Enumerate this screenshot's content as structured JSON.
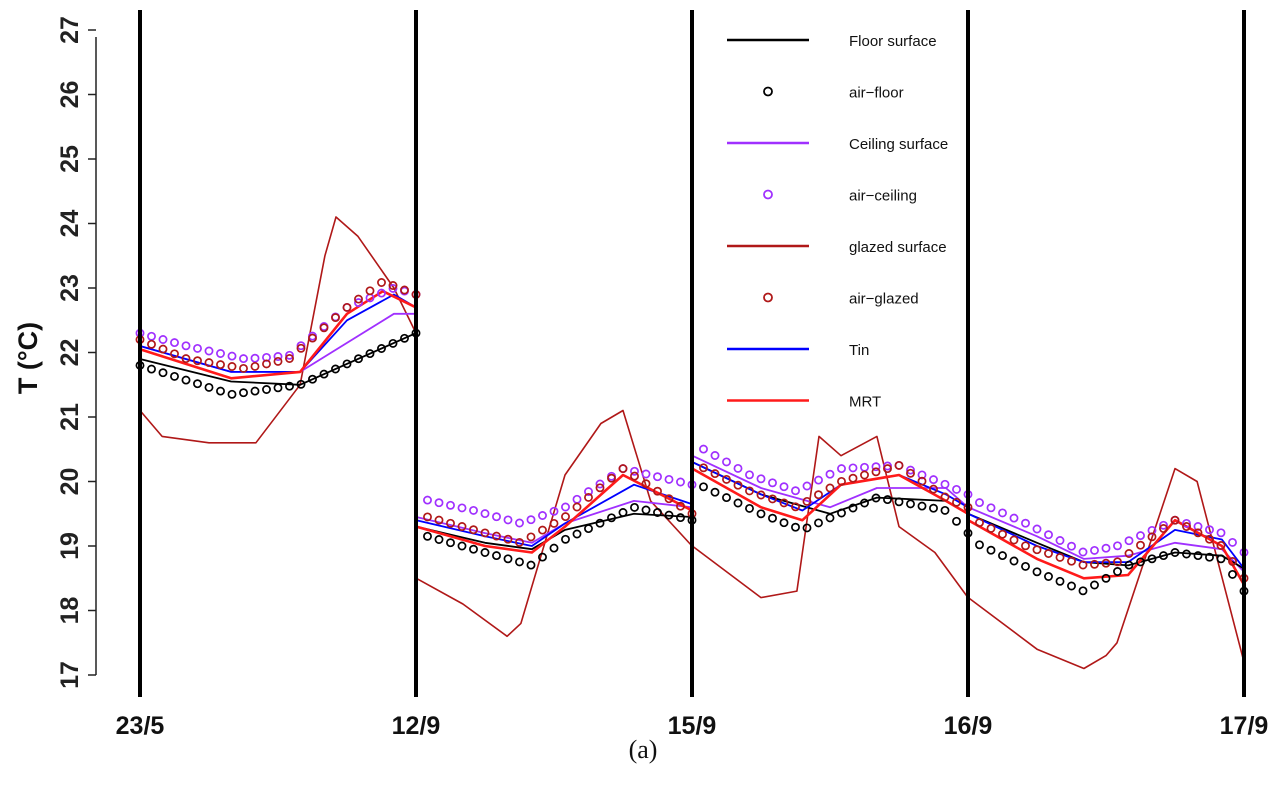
{
  "chart_data": {
    "type": "line",
    "caption": "(a)",
    "ylabel": "T (°C)",
    "ylim": [
      17,
      27
    ],
    "yticks": [
      "17",
      "18",
      "19",
      "20",
      "21",
      "22",
      "23",
      "24",
      "25",
      "26",
      "27"
    ],
    "panels": [
      "23/5",
      "12/9",
      "15/9",
      "16/9",
      "17/9"
    ],
    "x_description": "four day-panels, each subdivided into 24 hourly steps (x = panel_index + hour/24)",
    "legend_position": "top-right",
    "colors": {
      "floor": "#000000",
      "ceiling": "#a030ff",
      "glazed": "#b01818",
      "tin": "#0000ff",
      "mrt": "#ff1a1a"
    },
    "series": [
      {
        "name": "Floor surface",
        "key": "floor",
        "style": "line",
        "x": [
          0,
          0.33,
          0.58,
          1,
          1.001,
          1.25,
          1.42,
          1.54,
          1.79,
          2,
          2.001,
          2.25,
          2.5,
          2.67,
          2.92,
          3,
          3.001,
          3.25,
          3.42,
          3.58,
          3.75,
          3.92,
          4
        ],
        "y": [
          21.9,
          21.55,
          21.5,
          22.3,
          19.3,
          19.05,
          18.95,
          19.25,
          19.5,
          19.45,
          20.3,
          19.8,
          19.5,
          19.75,
          19.7,
          19.5,
          19.5,
          19.05,
          18.75,
          18.7,
          18.9,
          18.85,
          18.65
        ]
      },
      {
        "name": "air−floor",
        "key": "floor",
        "style": "points",
        "x": [
          0,
          0.33,
          0.58,
          1,
          1.001,
          1.25,
          1.42,
          1.54,
          1.79,
          2,
          2.001,
          2.25,
          2.4,
          2.67,
          2.92,
          3,
          3.001,
          3.25,
          3.42,
          3.58,
          3.75,
          3.92,
          4
        ],
        "y": [
          21.8,
          21.35,
          21.5,
          22.3,
          19.2,
          18.9,
          18.7,
          19.1,
          19.6,
          19.4,
          20.0,
          19.5,
          19.25,
          19.75,
          19.55,
          19.2,
          19.1,
          18.6,
          18.3,
          18.7,
          18.9,
          18.8,
          18.3
        ]
      },
      {
        "name": "Ceiling surface",
        "key": "ceiling",
        "style": "line",
        "x": [
          0,
          0.33,
          0.58,
          0.92,
          1,
          1.001,
          1.25,
          1.42,
          1.54,
          1.79,
          2,
          2.001,
          2.25,
          2.5,
          2.67,
          2.92,
          3,
          3.001,
          3.25,
          3.42,
          3.58,
          3.75,
          3.92,
          4
        ],
        "y": [
          22.1,
          21.7,
          21.7,
          22.6,
          22.6,
          19.45,
          19.2,
          19.05,
          19.35,
          19.7,
          19.6,
          20.4,
          19.9,
          19.6,
          19.9,
          19.9,
          19.6,
          19.6,
          19.15,
          18.8,
          18.85,
          19.05,
          18.95,
          18.6
        ]
      },
      {
        "name": "air−ceiling",
        "key": "ceiling",
        "style": "points",
        "x": [
          0,
          0.17,
          0.38,
          0.54,
          0.75,
          0.92,
          1,
          1.001,
          1.21,
          1.38,
          1.54,
          1.75,
          2,
          2.001,
          2.21,
          2.38,
          2.54,
          2.75,
          2.92,
          3,
          3.001,
          3.21,
          3.42,
          3.54,
          3.75,
          3.92,
          4
        ],
        "y": [
          22.3,
          22.1,
          21.9,
          21.95,
          22.7,
          23.0,
          22.9,
          19.75,
          19.55,
          19.35,
          19.6,
          20.2,
          19.95,
          20.6,
          20.1,
          19.85,
          20.2,
          20.25,
          19.95,
          19.8,
          19.75,
          19.35,
          18.9,
          19.0,
          19.4,
          19.2,
          18.9
        ]
      },
      {
        "name": "glazed surface",
        "key": "glazed",
        "style": "line",
        "x": [
          0,
          0.08,
          0.25,
          0.42,
          0.58,
          0.67,
          0.71,
          0.79,
          0.92,
          1,
          1.001,
          1.17,
          1.33,
          1.38,
          1.54,
          1.67,
          1.75,
          1.85,
          2,
          2.001,
          2.25,
          2.38,
          2.46,
          2.54,
          2.67,
          2.75,
          2.88,
          3,
          3.001,
          3.25,
          3.42,
          3.5,
          3.54,
          3.75,
          3.83,
          4
        ],
        "y": [
          21.1,
          20.7,
          20.6,
          20.6,
          21.5,
          23.5,
          24.1,
          23.8,
          23.0,
          22.3,
          18.5,
          18.1,
          17.6,
          17.8,
          20.1,
          20.9,
          21.1,
          19.7,
          19.0,
          19.0,
          18.2,
          18.3,
          20.7,
          20.4,
          20.7,
          19.3,
          18.9,
          18.2,
          18.2,
          17.4,
          17.1,
          17.3,
          17.5,
          20.2,
          20.0,
          17.2
        ]
      },
      {
        "name": "air−glazed",
        "key": "glazed",
        "style": "points",
        "x": [
          0,
          0.17,
          0.38,
          0.54,
          0.75,
          0.88,
          1,
          1.001,
          1.21,
          1.38,
          1.54,
          1.75,
          2,
          2.001,
          2.21,
          2.38,
          2.54,
          2.75,
          2.92,
          3,
          3.001,
          3.21,
          3.42,
          3.54,
          3.75,
          3.92,
          4
        ],
        "y": [
          22.2,
          21.9,
          21.75,
          21.9,
          22.7,
          23.1,
          22.9,
          19.5,
          19.25,
          19.05,
          19.45,
          20.2,
          19.5,
          20.3,
          19.85,
          19.6,
          20.0,
          20.25,
          19.75,
          19.6,
          19.45,
          19.0,
          18.7,
          18.75,
          19.4,
          19.0,
          18.5
        ]
      },
      {
        "name": "Tin",
        "key": "tin",
        "style": "line",
        "x": [
          0,
          0.33,
          0.58,
          0.75,
          0.92,
          1,
          1.001,
          1.25,
          1.42,
          1.54,
          1.79,
          2,
          2.001,
          2.25,
          2.4,
          2.54,
          2.75,
          2.92,
          3,
          3.001,
          3.25,
          3.42,
          3.58,
          3.75,
          3.92,
          4
        ],
        "y": [
          22.1,
          21.7,
          21.7,
          22.5,
          22.9,
          22.7,
          19.4,
          19.15,
          19.0,
          19.35,
          19.95,
          19.65,
          20.3,
          19.8,
          19.55,
          19.95,
          20.1,
          19.8,
          19.6,
          19.5,
          19.0,
          18.75,
          18.75,
          19.25,
          19.1,
          18.65
        ]
      },
      {
        "name": "MRT",
        "key": "mrt",
        "style": "line",
        "x": [
          0,
          0.33,
          0.58,
          0.75,
          0.88,
          1,
          1.001,
          1.25,
          1.42,
          1.54,
          1.75,
          2,
          2.001,
          2.25,
          2.4,
          2.54,
          2.75,
          2.92,
          3,
          3.001,
          3.25,
          3.42,
          3.58,
          3.75,
          3.92,
          4
        ],
        "y": [
          22.05,
          21.6,
          21.7,
          22.6,
          22.95,
          22.7,
          19.3,
          19.0,
          18.9,
          19.3,
          20.1,
          19.55,
          20.2,
          19.6,
          19.4,
          19.95,
          20.1,
          19.7,
          19.5,
          19.4,
          18.8,
          18.5,
          18.55,
          19.4,
          19.0,
          18.4
        ]
      }
    ]
  }
}
